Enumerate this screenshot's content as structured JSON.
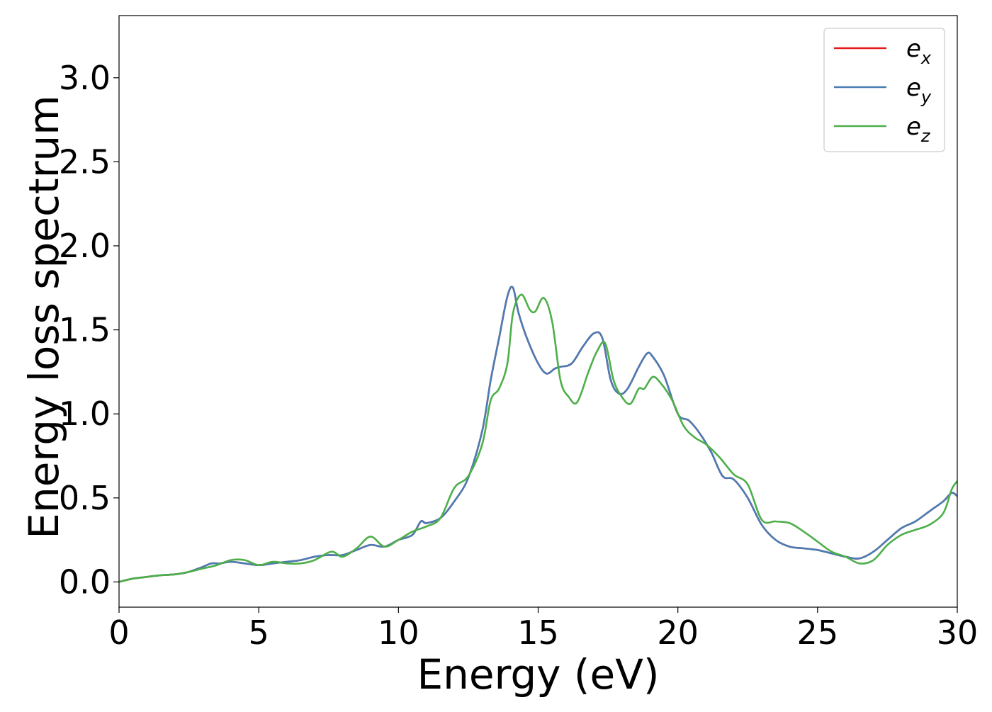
{
  "chart_data": {
    "type": "line",
    "title": "",
    "xlabel": "Energy (eV)",
    "ylabel": "Energy loss spectrum",
    "xlim": [
      0,
      30
    ],
    "ylim": [
      -0.15,
      3.37
    ],
    "xticks": [
      0,
      5,
      10,
      15,
      20,
      25,
      30
    ],
    "xtick_labels": [
      "0",
      "5",
      "10",
      "15",
      "20",
      "25",
      "30"
    ],
    "yticks": [
      0.0,
      0.5,
      1.0,
      1.5,
      2.0,
      2.5,
      3.0
    ],
    "ytick_labels": [
      "0.0",
      "0.5",
      "1.0",
      "1.5",
      "2.0",
      "2.5",
      "3.0"
    ],
    "grid": false,
    "legend_position": "top-right",
    "series": [
      {
        "name": "e_x",
        "legend_base": "e",
        "legend_sub": "x",
        "color": "#e41a1c",
        "x": [
          0,
          0.5,
          1,
          1.5,
          2,
          2.5,
          3,
          3.3,
          3.6,
          4,
          4.5,
          5,
          5.5,
          6,
          6.5,
          7,
          7.5,
          8,
          8.5,
          9,
          9.5,
          10,
          10.5,
          10.8,
          11,
          11.5,
          12,
          12.5,
          13,
          13.3,
          13.6,
          13.9,
          14.1,
          14.3,
          14.6,
          15,
          15.3,
          15.6,
          15.8,
          16.2,
          16.6,
          17,
          17.3,
          17.6,
          17.9,
          18.2,
          18.6,
          18.9,
          19.1,
          19.5,
          20,
          20.4,
          20.8,
          21.2,
          21.6,
          22,
          22.5,
          23,
          23.5,
          24,
          24.5,
          25,
          25.5,
          26,
          26.5,
          27,
          27.5,
          28,
          28.5,
          29,
          29.5,
          29.8,
          30
        ],
        "y": [
          0.0,
          0.02,
          0.03,
          0.04,
          0.045,
          0.06,
          0.09,
          0.11,
          0.11,
          0.12,
          0.11,
          0.1,
          0.11,
          0.12,
          0.13,
          0.15,
          0.16,
          0.16,
          0.19,
          0.22,
          0.21,
          0.25,
          0.28,
          0.36,
          0.35,
          0.38,
          0.48,
          0.62,
          0.9,
          1.2,
          1.45,
          1.7,
          1.75,
          1.6,
          1.45,
          1.3,
          1.24,
          1.27,
          1.28,
          1.3,
          1.4,
          1.48,
          1.45,
          1.2,
          1.12,
          1.15,
          1.28,
          1.36,
          1.34,
          1.23,
          1.0,
          0.96,
          0.88,
          0.77,
          0.63,
          0.61,
          0.5,
          0.34,
          0.25,
          0.21,
          0.2,
          0.19,
          0.17,
          0.15,
          0.14,
          0.18,
          0.25,
          0.32,
          0.36,
          0.42,
          0.48,
          0.53,
          0.51
        ]
      },
      {
        "name": "e_y",
        "legend_base": "e",
        "legend_sub": "y",
        "color": "#4a7db5",
        "x": [
          0,
          0.5,
          1,
          1.5,
          2,
          2.5,
          3,
          3.3,
          3.6,
          4,
          4.5,
          5,
          5.5,
          6,
          6.5,
          7,
          7.5,
          8,
          8.5,
          9,
          9.5,
          10,
          10.5,
          10.8,
          11,
          11.5,
          12,
          12.5,
          13,
          13.3,
          13.6,
          13.9,
          14.1,
          14.3,
          14.6,
          15,
          15.3,
          15.6,
          15.8,
          16.2,
          16.6,
          17,
          17.3,
          17.6,
          17.9,
          18.2,
          18.6,
          18.9,
          19.1,
          19.5,
          20,
          20.4,
          20.8,
          21.2,
          21.6,
          22,
          22.5,
          23,
          23.5,
          24,
          24.5,
          25,
          25.5,
          26,
          26.5,
          27,
          27.5,
          28,
          28.5,
          29,
          29.5,
          29.8,
          30
        ],
        "y": [
          0.0,
          0.02,
          0.03,
          0.04,
          0.045,
          0.06,
          0.09,
          0.11,
          0.11,
          0.12,
          0.11,
          0.1,
          0.11,
          0.12,
          0.13,
          0.15,
          0.16,
          0.16,
          0.19,
          0.22,
          0.21,
          0.25,
          0.28,
          0.36,
          0.35,
          0.38,
          0.48,
          0.62,
          0.9,
          1.2,
          1.45,
          1.7,
          1.75,
          1.6,
          1.45,
          1.3,
          1.24,
          1.27,
          1.28,
          1.3,
          1.4,
          1.48,
          1.45,
          1.2,
          1.12,
          1.15,
          1.28,
          1.36,
          1.34,
          1.23,
          1.0,
          0.96,
          0.88,
          0.77,
          0.63,
          0.61,
          0.5,
          0.34,
          0.25,
          0.21,
          0.2,
          0.19,
          0.17,
          0.15,
          0.14,
          0.18,
          0.25,
          0.32,
          0.36,
          0.42,
          0.48,
          0.53,
          0.51
        ]
      },
      {
        "name": "e_z",
        "legend_base": "e",
        "legend_sub": "z",
        "color": "#4daf4a",
        "x": [
          0,
          0.5,
          1,
          1.5,
          2,
          2.5,
          3,
          3.5,
          4,
          4.5,
          5,
          5.5,
          6,
          6.5,
          7,
          7.6,
          8,
          8.5,
          9,
          9.5,
          10,
          10.5,
          11,
          11.5,
          12,
          12.5,
          13,
          13.3,
          13.6,
          13.9,
          14.1,
          14.4,
          14.7,
          14.9,
          15.2,
          15.5,
          15.8,
          16.1,
          16.4,
          16.8,
          17.1,
          17.4,
          17.7,
          18,
          18.3,
          18.6,
          18.8,
          19.1,
          19.4,
          19.8,
          20.2,
          20.6,
          21,
          21.5,
          22,
          22.5,
          23,
          23.5,
          24,
          24.5,
          25,
          25.5,
          26,
          26.5,
          27,
          27.5,
          28,
          28.5,
          29,
          29.5,
          29.8,
          30
        ],
        "y": [
          0.0,
          0.02,
          0.03,
          0.04,
          0.045,
          0.06,
          0.08,
          0.1,
          0.13,
          0.13,
          0.1,
          0.12,
          0.11,
          0.11,
          0.13,
          0.18,
          0.15,
          0.2,
          0.27,
          0.21,
          0.25,
          0.3,
          0.33,
          0.38,
          0.56,
          0.63,
          0.82,
          1.08,
          1.15,
          1.3,
          1.6,
          1.71,
          1.62,
          1.61,
          1.69,
          1.55,
          1.2,
          1.1,
          1.07,
          1.25,
          1.37,
          1.42,
          1.2,
          1.1,
          1.06,
          1.15,
          1.15,
          1.22,
          1.18,
          1.08,
          0.93,
          0.86,
          0.82,
          0.74,
          0.64,
          0.58,
          0.37,
          0.36,
          0.35,
          0.3,
          0.24,
          0.18,
          0.15,
          0.11,
          0.13,
          0.22,
          0.28,
          0.31,
          0.34,
          0.41,
          0.55,
          0.6
        ]
      }
    ]
  }
}
